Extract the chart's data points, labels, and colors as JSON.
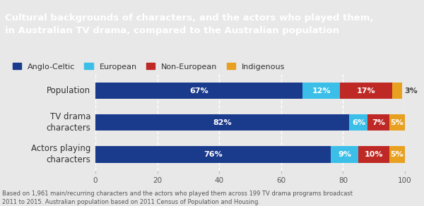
{
  "title": "Cultural backgrounds of characters, and the actors who played them,\nin Australian TV drama, compared to the Australian population",
  "title_bg": "#595959",
  "title_color": "#ffffff",
  "categories": [
    "Population",
    "TV drama\ncharacters",
    "Actors playing\ncharacters"
  ],
  "series": [
    {
      "label": "Anglo-Celtic",
      "color": "#1a3a8c",
      "values": [
        67,
        82,
        76
      ]
    },
    {
      "label": "European",
      "color": "#3bbfe8",
      "values": [
        12,
        6,
        9
      ]
    },
    {
      "label": "Non-European",
      "color": "#be2926",
      "values": [
        17,
        7,
        10
      ]
    },
    {
      "label": "Indigenous",
      "color": "#e8a020",
      "values": [
        3,
        5,
        5
      ]
    }
  ],
  "xlim": [
    0,
    100
  ],
  "xticks": [
    0,
    20,
    40,
    60,
    80,
    100
  ],
  "footnote": "Based on 1,961 main/recurring characters and the actors who played them across 199 TV drama programs broadcast\n2011 to 2015. Australian population based on 2011 Census of Population and Housing.",
  "bg_color": "#e8e8e8",
  "bar_height": 0.52,
  "grid_color": "#ffffff",
  "title_fontsize": 9.5,
  "legend_fontsize": 8.0,
  "tick_fontsize": 7.5,
  "ylabel_fontsize": 8.5,
  "label_fontsize": 8.0,
  "footnote_fontsize": 6.0
}
